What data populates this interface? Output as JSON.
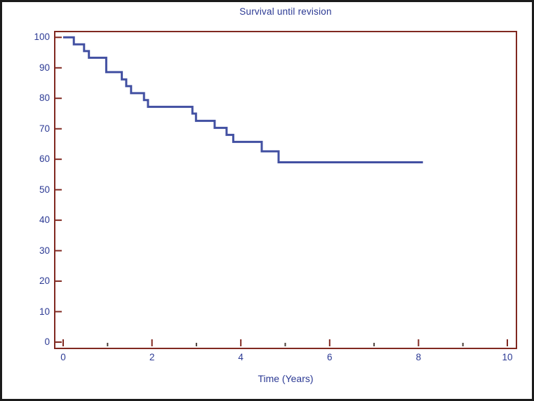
{
  "window": {
    "background_color": "#ffffff",
    "border_color": "#1b1b1b"
  },
  "chart_data": {
    "type": "line",
    "subtype": "kaplan-meier-step-curve",
    "title": "Survival until revision",
    "xlabel": "Time (Years)",
    "ylabel": "",
    "xlim": [
      0,
      10
    ],
    "ylim": [
      0,
      100
    ],
    "x_ticks_major": [
      0,
      2,
      4,
      6,
      8,
      10
    ],
    "x_ticks_minor": [
      1,
      3,
      5,
      7,
      9
    ],
    "y_ticks": [
      0,
      10,
      20,
      30,
      40,
      50,
      60,
      70,
      80,
      90,
      100
    ],
    "grid": false,
    "legend_position": "none",
    "series": [
      {
        "name": "Survival until revision",
        "step": "post",
        "points": [
          [
            0,
            100
          ],
          [
            0.24,
            97.7
          ],
          [
            0.47,
            95.5
          ],
          [
            0.58,
            93.3
          ],
          [
            0.97,
            88.6
          ],
          [
            1.32,
            86.2
          ],
          [
            1.42,
            84.0
          ],
          [
            1.53,
            81.7
          ],
          [
            1.82,
            79.4
          ],
          [
            1.91,
            77.2
          ],
          [
            2.91,
            75.0
          ],
          [
            2.99,
            72.6
          ],
          [
            3.41,
            70.3
          ],
          [
            3.68,
            68.0
          ],
          [
            3.83,
            65.7
          ],
          [
            4.47,
            62.6
          ],
          [
            4.85,
            59.0
          ],
          [
            8.1,
            59.0
          ]
        ]
      }
    ],
    "colors": {
      "curve": "#4250a2",
      "axis_frame": "#802820",
      "major_tick": "#802820",
      "minor_tick": "#4a3f3a",
      "frame_shadow": "#a8a8a8",
      "text": "#2c3a94"
    }
  }
}
